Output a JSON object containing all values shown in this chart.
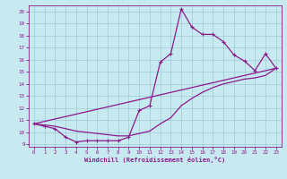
{
  "xlabel": "Windchill (Refroidissement éolien,°C)",
  "bg_color": "#c6eaf0",
  "grid_color": "#a0c8d8",
  "line_color": "#8b1a8b",
  "x_ticks": [
    0,
    1,
    2,
    3,
    4,
    5,
    6,
    7,
    8,
    9,
    10,
    11,
    12,
    13,
    14,
    15,
    16,
    17,
    18,
    19,
    20,
    21,
    22,
    23
  ],
  "ylim": [
    8.8,
    20.5
  ],
  "xlim": [
    -0.5,
    23.5
  ],
  "y_ticks": [
    9,
    10,
    11,
    12,
    13,
    14,
    15,
    16,
    17,
    18,
    19,
    20
  ],
  "line1_x": [
    0,
    1,
    2,
    3,
    4,
    5,
    6,
    7,
    8,
    9,
    10,
    11,
    12,
    13,
    14,
    15,
    16,
    17,
    18,
    19,
    20,
    21,
    22,
    23
  ],
  "line1_y": [
    10.7,
    10.5,
    10.3,
    9.6,
    9.2,
    9.3,
    9.3,
    9.3,
    9.3,
    9.6,
    11.8,
    12.2,
    15.8,
    16.5,
    20.2,
    18.7,
    18.1,
    18.1,
    17.5,
    16.4,
    15.9,
    15.1,
    16.5,
    15.3
  ],
  "line2_x": [
    0,
    23
  ],
  "line2_y": [
    10.7,
    15.3
  ],
  "line3_x": [
    0,
    1,
    2,
    3,
    4,
    5,
    6,
    7,
    8,
    9,
    10,
    11,
    12,
    13,
    14,
    15,
    16,
    17,
    18,
    19,
    20,
    21,
    22,
    23
  ],
  "line3_y": [
    10.7,
    10.6,
    10.5,
    10.3,
    10.1,
    10.0,
    9.9,
    9.8,
    9.7,
    9.7,
    9.9,
    10.1,
    10.7,
    11.2,
    12.2,
    12.8,
    13.3,
    13.7,
    14.0,
    14.2,
    14.4,
    14.5,
    14.7,
    15.3
  ]
}
